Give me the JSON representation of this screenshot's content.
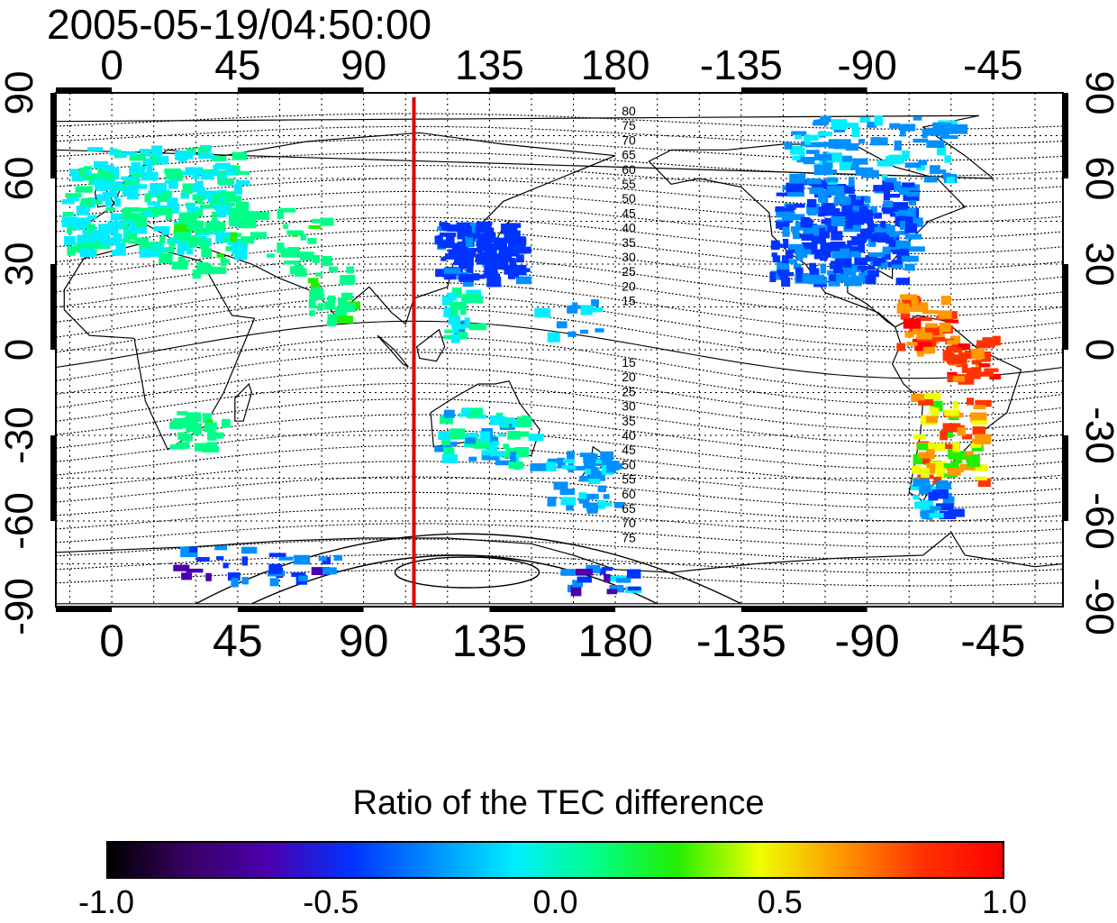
{
  "title": "2005-05-19/04:50:00",
  "map": {
    "top_lon_labels": [
      "0",
      "45",
      "90",
      "135",
      "180",
      "-135",
      "-90",
      "-45"
    ],
    "bottom_lon_labels": [
      "0",
      "45",
      "90",
      "135",
      "180",
      "-135",
      "-90",
      "-45"
    ],
    "left_lat_labels": [
      "90",
      "60",
      "30",
      "0",
      "-30",
      "-60",
      "-90"
    ],
    "right_lat_labels": [
      "90",
      "60",
      "30",
      "0",
      "-30",
      "-60",
      "-90"
    ],
    "lon_range": [
      -20,
      340
    ],
    "lat_range": [
      -90,
      90
    ],
    "marker_line_lon": 108,
    "marker_line_color": "#dd0000",
    "contour_labels_north": [
      "80",
      "75",
      "70",
      "65",
      "60",
      "55",
      "50",
      "45",
      "40",
      "35",
      "30",
      "25",
      "20",
      "15"
    ],
    "contour_labels_south": [
      "15",
      "20",
      "25",
      "30",
      "35",
      "40",
      "45",
      "50",
      "55",
      "60",
      "65",
      "70",
      "75"
    ],
    "grid": true
  },
  "colorbar": {
    "title": "Ratio of the TEC difference",
    "ticks": [
      "-1.0",
      "-0.5",
      "0.0",
      "0.5",
      "1.0"
    ],
    "range": [
      -1.0,
      1.0
    ],
    "colors": [
      "#000000",
      "#3a0066",
      "#4b00b0",
      "#0033ff",
      "#0090ff",
      "#00eeff",
      "#00ff88",
      "#22ee00",
      "#eeff00",
      "#ff9900",
      "#ff3300",
      "#ff0000"
    ]
  }
}
